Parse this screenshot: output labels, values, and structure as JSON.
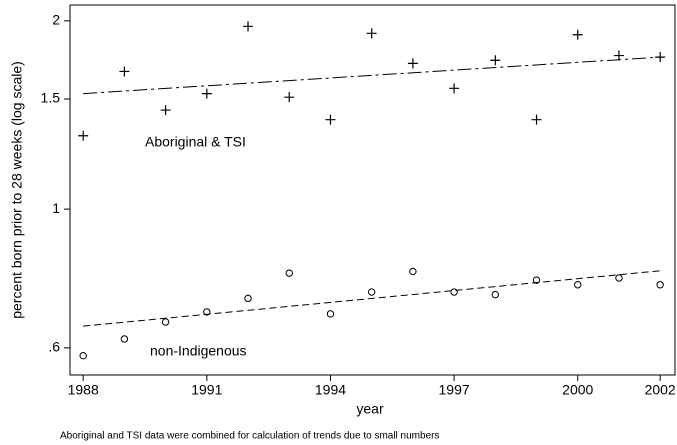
{
  "chart_data": {
    "type": "scatter",
    "ylabel": "percent born prior to 28 weeks (log scale)",
    "xlabel": "year",
    "caption": "Aboriginal and TSI data were combined for calculation of trends due to small numbers",
    "ylog": true,
    "xlim": [
      1987.68,
      2002.36
    ],
    "ylim": [
      0.543,
      2.12
    ],
    "xticks": [
      1988,
      1991,
      1994,
      1997,
      2000,
      2002
    ],
    "yticks": [
      {
        "value": 0.6,
        "label": ".6"
      },
      1,
      1.5,
      2
    ],
    "x": [
      1988,
      1989,
      1990,
      1991,
      1992,
      1993,
      1994,
      1995,
      1996,
      1997,
      1998,
      1999,
      2000,
      2001,
      2002
    ],
    "series": [
      {
        "name": "Aboriginal & TSI",
        "color": "#000000",
        "marker": "plus",
        "dash": "dash-dot",
        "values": [
          1.31,
          1.66,
          1.44,
          1.53,
          1.96,
          1.51,
          1.39,
          1.91,
          1.71,
          1.56,
          1.73,
          1.39,
          1.9,
          1.76,
          1.75
        ],
        "trend": {
          "x": [
            1988,
            2002
          ],
          "values": [
            1.53,
            1.75
          ]
        }
      },
      {
        "name": "non-Indigenous",
        "color": "#000000",
        "marker": "circle",
        "dash": "dash",
        "values": [
          0.583,
          0.62,
          0.66,
          0.685,
          0.72,
          0.79,
          0.68,
          0.737,
          0.795,
          0.737,
          0.73,
          0.77,
          0.757,
          0.776,
          0.757
        ],
        "trend": {
          "x": [
            1988,
            2002
          ],
          "values": [
            0.65,
            0.797
          ]
        }
      }
    ]
  }
}
